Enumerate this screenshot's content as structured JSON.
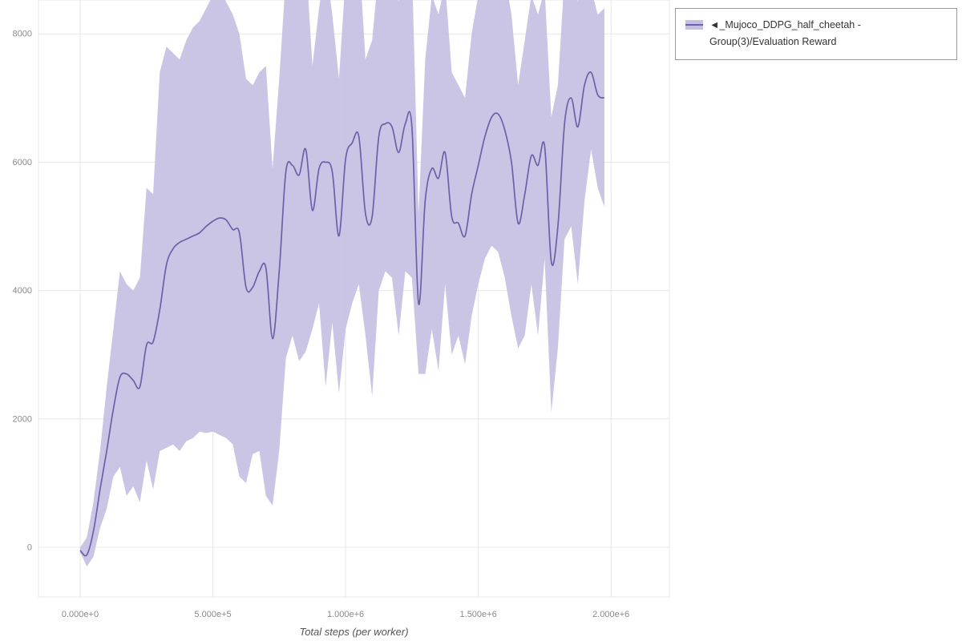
{
  "legend": {
    "label": "◄_Mujoco_DDPG_half_cheetah - Group(3)/Evaluation Reward"
  },
  "chart_data": {
    "type": "line",
    "title": "",
    "xlabel": "Total steps (per worker)",
    "ylabel": "",
    "legend_position": "top-right",
    "grid": true,
    "xlim": [
      -157000,
      2220000
    ],
    "ylim": [
      -774,
      8527
    ],
    "x_ticks": [
      {
        "value": 0,
        "label": "0.000e+0"
      },
      {
        "value": 500000,
        "label": "5.000e+5"
      },
      {
        "value": 1000000,
        "label": "1.000e+6"
      },
      {
        "value": 1500000,
        "label": "1.500e+6"
      },
      {
        "value": 2000000,
        "label": "2.000e+6"
      }
    ],
    "y_ticks": [
      {
        "value": 0,
        "label": "0"
      },
      {
        "value": 2000,
        "label": "2000"
      },
      {
        "value": 4000,
        "label": "4000"
      },
      {
        "value": 6000,
        "label": "6000"
      },
      {
        "value": 8000,
        "label": "8000"
      }
    ],
    "colors": {
      "line": "#6b61ab",
      "band": "#c5c0e2",
      "grid": "#e7e7e7",
      "tick_label": "#8a8a8a",
      "axis_label": "#555555",
      "legend_border": "#9a9a9a"
    },
    "series": [
      {
        "name": "◄_Mujoco_DDPG_half_cheetah - Group(3)/Evaluation Reward",
        "x": [
          0,
          25000,
          50000,
          75000,
          100000,
          125000,
          150000,
          175000,
          200000,
          225000,
          250000,
          275000,
          300000,
          325000,
          350000,
          375000,
          400000,
          425000,
          450000,
          475000,
          500000,
          525000,
          550000,
          575000,
          600000,
          625000,
          650000,
          675000,
          700000,
          725000,
          750000,
          775000,
          800000,
          825000,
          850000,
          875000,
          900000,
          925000,
          950000,
          975000,
          1000000,
          1025000,
          1050000,
          1075000,
          1100000,
          1125000,
          1150000,
          1175000,
          1200000,
          1225000,
          1250000,
          1275000,
          1300000,
          1325000,
          1350000,
          1375000,
          1400000,
          1425000,
          1450000,
          1475000,
          1500000,
          1525000,
          1550000,
          1575000,
          1600000,
          1625000,
          1650000,
          1675000,
          1700000,
          1725000,
          1750000,
          1775000,
          1800000,
          1825000,
          1850000,
          1875000,
          1900000,
          1925000,
          1950000,
          1975000
        ],
        "mean": [
          -50,
          -120,
          250,
          900,
          1500,
          2150,
          2650,
          2700,
          2600,
          2500,
          3150,
          3200,
          3700,
          4400,
          4650,
          4750,
          4800,
          4850,
          4900,
          5000,
          5080,
          5130,
          5100,
          4950,
          4900,
          4050,
          4050,
          4300,
          4350,
          3250,
          4300,
          5850,
          5950,
          5800,
          6200,
          5250,
          5900,
          6000,
          5850,
          4850,
          6050,
          6300,
          6400,
          5200,
          5150,
          6400,
          6600,
          6550,
          6150,
          6600,
          6550,
          3800,
          5400,
          5900,
          5750,
          6150,
          5150,
          5050,
          4850,
          5500,
          5950,
          6400,
          6700,
          6750,
          6500,
          6000,
          5050,
          5500,
          6100,
          5950,
          6250,
          4450,
          5000,
          6600,
          7000,
          6550,
          7200,
          7400,
          7050,
          7000
        ],
        "lower": [
          -80,
          -300,
          -150,
          300,
          600,
          1100,
          1250,
          800,
          950,
          700,
          1350,
          900,
          1500,
          1550,
          1600,
          1500,
          1650,
          1700,
          1800,
          1780,
          1800,
          1750,
          1700,
          1600,
          1100,
          1000,
          1450,
          1500,
          800,
          650,
          1500,
          2950,
          3300,
          2900,
          3050,
          3400,
          3800,
          2500,
          3500,
          2400,
          3400,
          3800,
          4100,
          3300,
          2350,
          4000,
          4300,
          4200,
          3300,
          4300,
          4200,
          2700,
          2700,
          3400,
          2750,
          4100,
          3000,
          3300,
          2850,
          3600,
          4100,
          4500,
          4700,
          4600,
          4200,
          3600,
          3100,
          3300,
          4100,
          3300,
          4500,
          2100,
          3100,
          4800,
          5000,
          4100,
          5400,
          6200,
          5600,
          5300
        ],
        "upper": [
          0,
          150,
          700,
          1500,
          2500,
          3400,
          4300,
          4100,
          4000,
          4200,
          5600,
          5500,
          7400,
          7800,
          7700,
          7600,
          7900,
          8100,
          8200,
          8400,
          8600,
          8700,
          8500,
          8300,
          8000,
          7300,
          7200,
          7400,
          7500,
          5900,
          7300,
          8900,
          9000,
          8600,
          9200,
          7500,
          8400,
          9100,
          8300,
          7300,
          8900,
          9100,
          9300,
          7600,
          7900,
          9000,
          9200,
          9000,
          8500,
          9200,
          9100,
          5200,
          7600,
          8600,
          8300,
          8800,
          7400,
          7200,
          7000,
          8000,
          8600,
          8900,
          9200,
          9300,
          8900,
          8300,
          7200,
          7900,
          8600,
          8300,
          8700,
          6700,
          7200,
          8900,
          9300,
          8500,
          9200,
          8700,
          8300,
          8400
        ]
      }
    ]
  }
}
